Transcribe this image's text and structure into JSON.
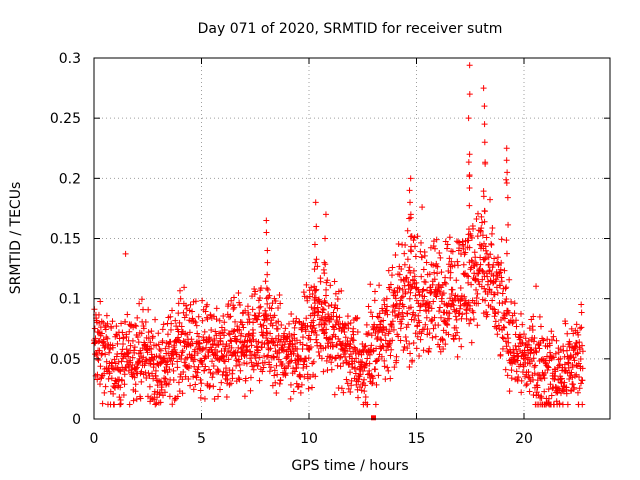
{
  "chart_data": {
    "type": "scatter",
    "title": "Day 071 of 2020, SRMTID for receiver sutm",
    "xlabel": "GPS time / hours",
    "ylabel": "SRMTID / TECUs",
    "xlim": [
      0,
      24
    ],
    "ylim": [
      0,
      0.3
    ],
    "x_ticks": [
      0,
      5,
      10,
      15,
      20
    ],
    "x_tick_labels": [
      "0",
      "5",
      "10",
      "15",
      "20"
    ],
    "y_ticks": [
      0,
      0.05,
      0.1,
      0.15,
      0.2,
      0.25,
      0.3
    ],
    "y_tick_labels": [
      "0",
      "0.05",
      "0.1",
      "0.15",
      "0.2",
      "0.25",
      "0.3"
    ],
    "grid": true,
    "marker": "plus",
    "color": "#ff0000",
    "series": [
      {
        "name": "SRMTID",
        "x_start": 0.0,
        "x_end": 22.75,
        "x_step": 0.01,
        "baseline_profile": [
          [
            0.0,
            0.062
          ],
          [
            1.0,
            0.042
          ],
          [
            2.0,
            0.058
          ],
          [
            3.0,
            0.04
          ],
          [
            4.0,
            0.062
          ],
          [
            5.0,
            0.058
          ],
          [
            6.0,
            0.052
          ],
          [
            7.0,
            0.062
          ],
          [
            8.0,
            0.075
          ],
          [
            8.5,
            0.055
          ],
          [
            9.5,
            0.055
          ],
          [
            10.5,
            0.085
          ],
          [
            11.5,
            0.065
          ],
          [
            12.5,
            0.042
          ],
          [
            13.3,
            0.068
          ],
          [
            14.0,
            0.09
          ],
          [
            15.0,
            0.1
          ],
          [
            16.0,
            0.1
          ],
          [
            17.0,
            0.11
          ],
          [
            18.0,
            0.13
          ],
          [
            19.0,
            0.09
          ],
          [
            19.5,
            0.06
          ],
          [
            20.5,
            0.045
          ],
          [
            21.5,
            0.035
          ],
          [
            22.75,
            0.055
          ]
        ],
        "spread": 0.016,
        "spikes": [
          {
            "x": 8.05,
            "values": [
              0.12,
              0.13,
              0.14,
              0.155,
              0.165
            ]
          },
          {
            "x": 10.3,
            "values": [
              0.13,
              0.145,
              0.16,
              0.18
            ]
          },
          {
            "x": 10.75,
            "values": [
              0.13,
              0.15,
              0.17
            ]
          },
          {
            "x": 14.7,
            "values": [
              0.17,
              0.18,
              0.19,
              0.2
            ]
          },
          {
            "x": 17.45,
            "values": [
              0.22,
              0.25,
              0.27,
              0.294
            ]
          },
          {
            "x": 18.15,
            "values": [
              0.23,
              0.245,
              0.26,
              0.275
            ]
          },
          {
            "x": 19.2,
            "values": [
              0.205,
              0.215,
              0.225
            ]
          }
        ],
        "outliers": [
          {
            "x": 13.0,
            "y": 0.001
          }
        ]
      }
    ]
  }
}
